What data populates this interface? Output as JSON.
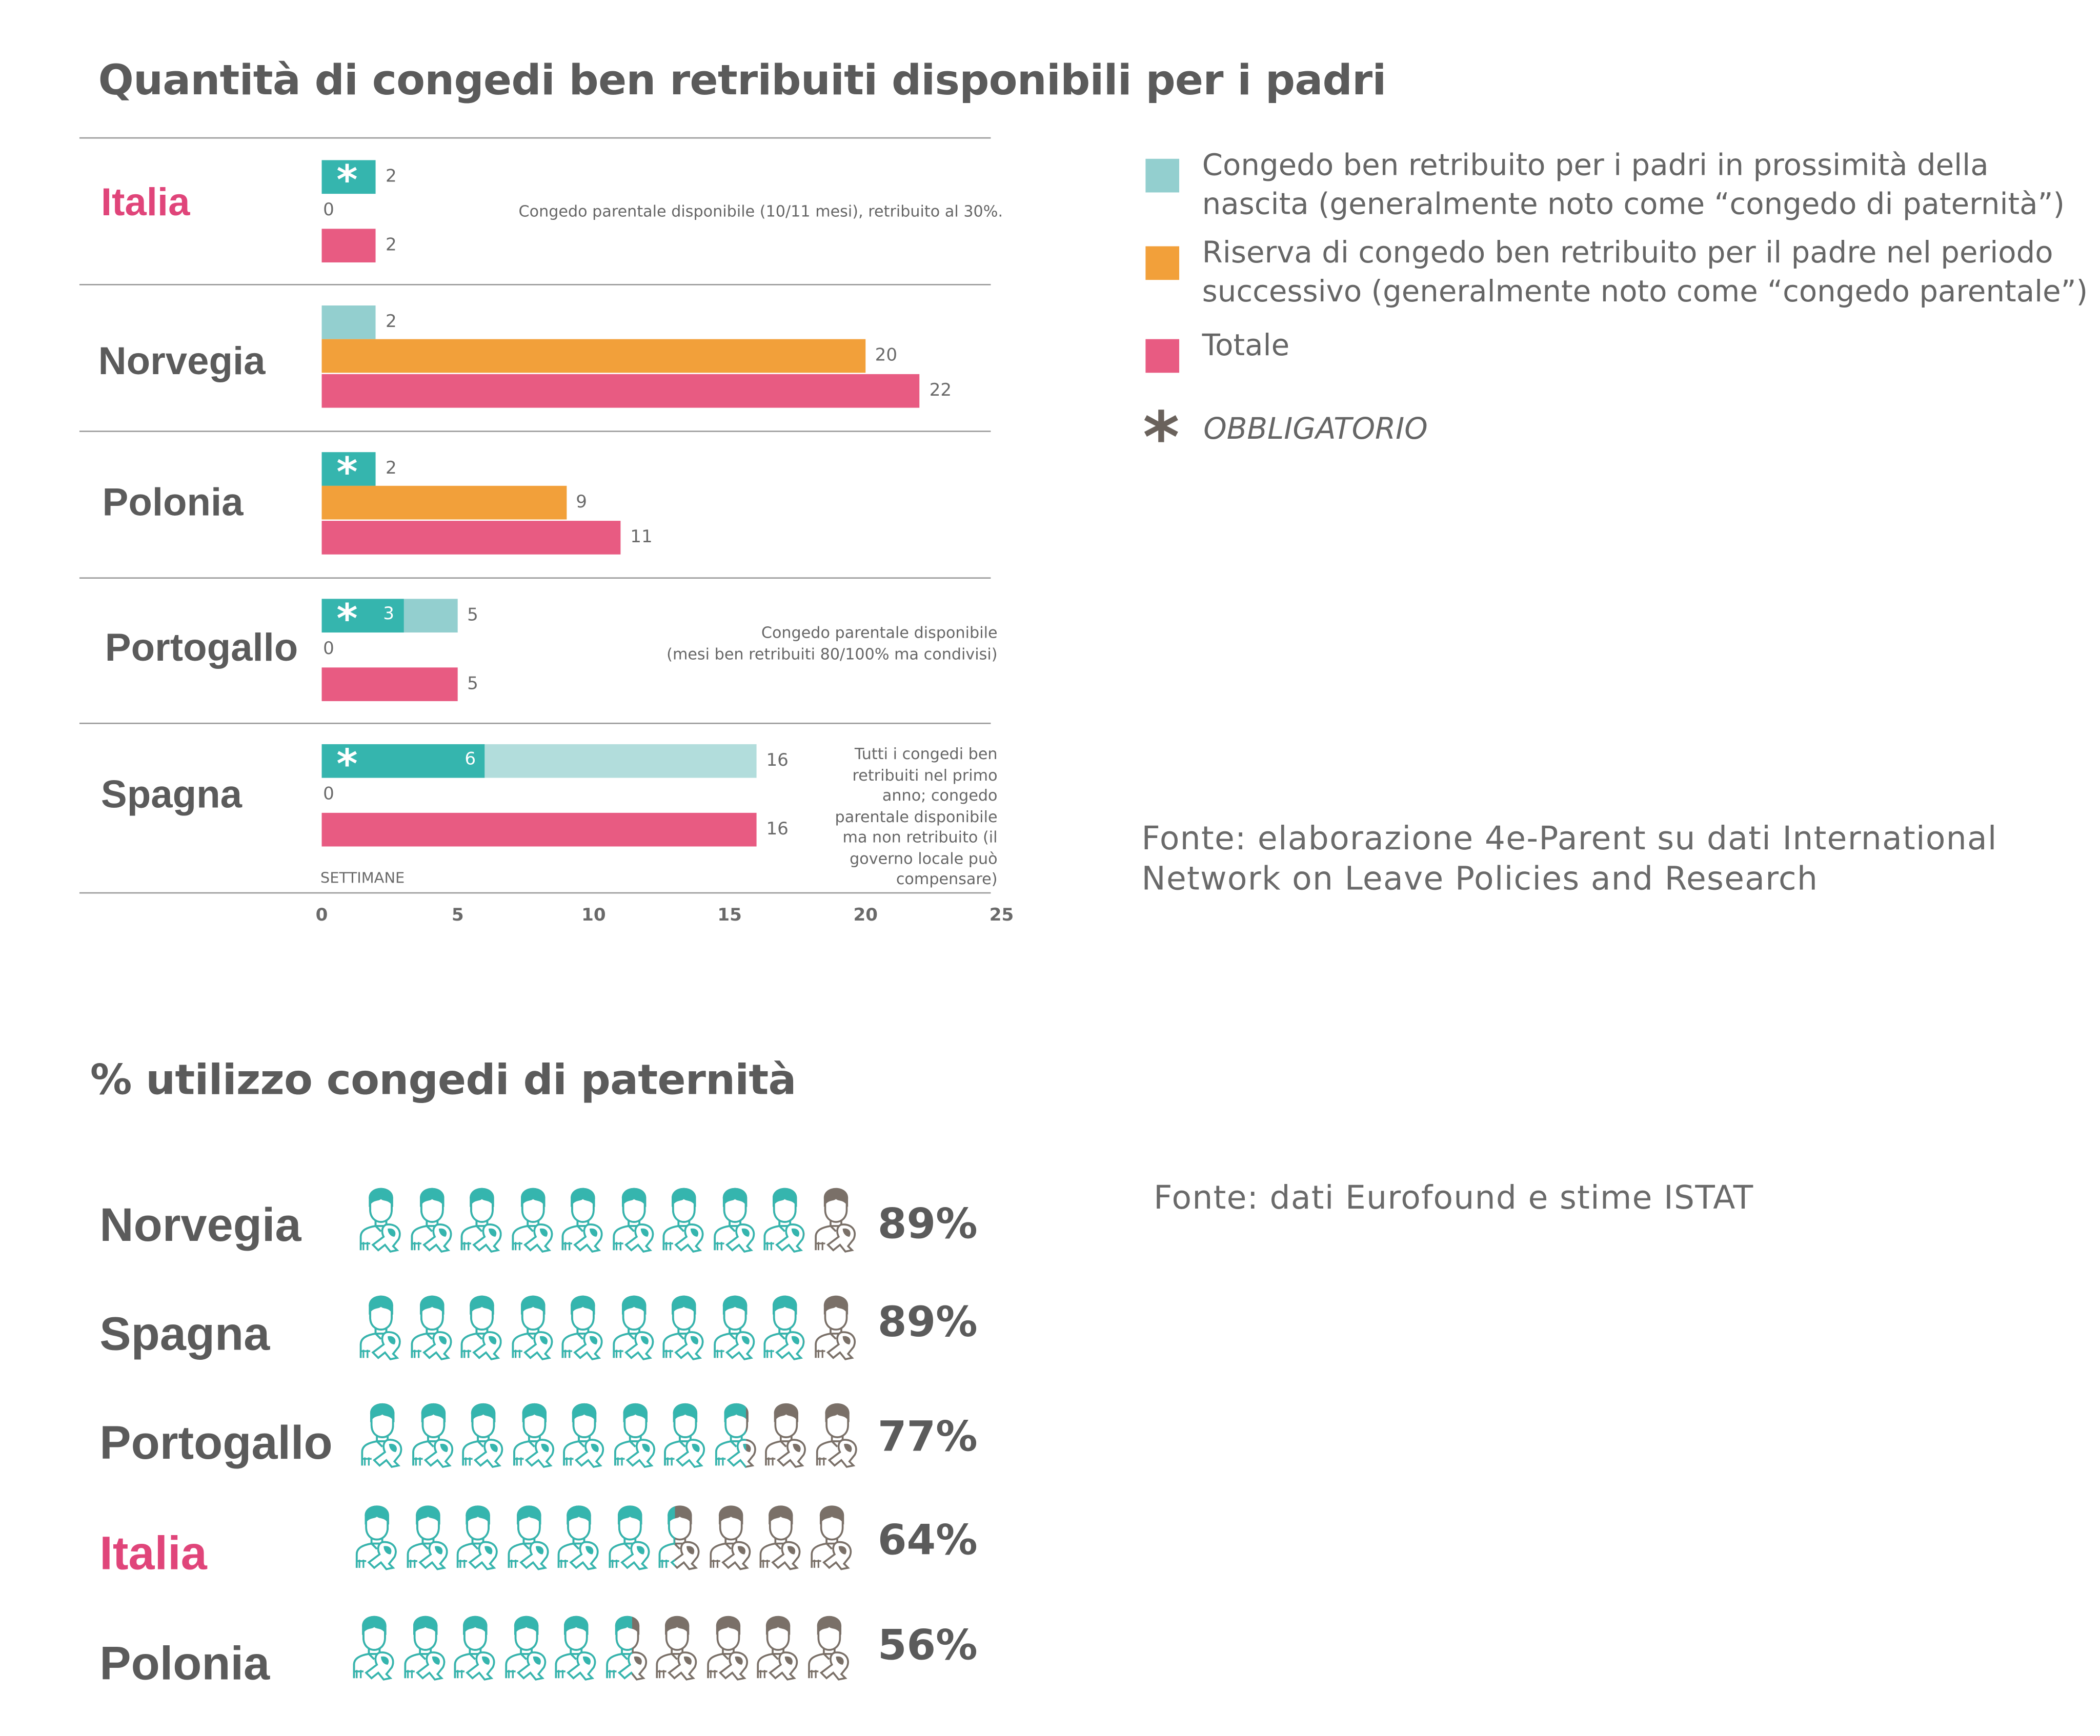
{
  "colors": {
    "mandatory": "#35b5ae",
    "paternity": "#93cfcf",
    "paternity_light": "#b2dddc",
    "parental": "#f2a03a",
    "total": "#e85b82",
    "highlight": "#e0457a",
    "icon_off": "#7a7068",
    "text": "#5b5b5b"
  },
  "chart_data": [
    {
      "type": "bar",
      "title": "Quantità di congedi ben retribuiti disponibili per i padri",
      "xlabel": "SETTIMANE",
      "xlim": [
        0,
        25
      ],
      "xticks": [
        "0",
        "5",
        "10",
        "15",
        "20",
        "25"
      ],
      "categories": [
        "Italia",
        "Norvegia",
        "Polonia",
        "Portogallo",
        "Spagna"
      ],
      "highlight_category": "Italia",
      "series": [
        {
          "name": "Congedo ben retribuito per i padri in prossimità della nascita (generalmente noto come “congedo di paternità”)",
          "values": [
            2,
            2,
            2,
            5,
            16
          ],
          "mandatory": [
            2,
            0,
            2,
            3,
            6
          ]
        },
        {
          "name": "Riserva di congedo ben retribuito per il padre nel periodo successivo (generalmente noto come “congedo parentale”)",
          "values": [
            0,
            20,
            9,
            0,
            0
          ]
        },
        {
          "name": "Totale",
          "values": [
            2,
            22,
            11,
            5,
            16
          ]
        }
      ],
      "annotations": [
        {
          "category": "Italia",
          "text": [
            "Congedo parentale disponibile (10/11 mesi), retribuito al 30%."
          ]
        },
        {
          "category": "Portogallo",
          "text": [
            "Congedo parentale disponibile",
            "(mesi ben retribuiti 80/100% ma condivisi)"
          ]
        },
        {
          "category": "Spagna",
          "text": [
            "Tutti i congedi ben",
            "retribuiti nel primo",
            "anno; congedo",
            "parentale disponibile",
            "ma non retribuito (il",
            "governo locale può",
            "compensare)"
          ]
        }
      ],
      "legend": {
        "placement": "right",
        "items": [
          "Congedo ben retribuito per i padri in prossimità della nascita (generalmente noto come “congedo di paternità”)",
          "Riserva di congedo ben retribuito per il padre nel periodo successivo (generalmente noto come “congedo parentale”)",
          "Totale"
        ],
        "mandatory_label": "OBBLIGATORIO"
      },
      "source": [
        "Fonte: elaborazione 4e-Parent su dati International",
        "Network on Leave Policies and Research"
      ]
    },
    {
      "type": "pictograph",
      "title": "% utilizzo congedi di paternità",
      "icon": "father-with-baby-icon",
      "icons_per_row": 10,
      "categories": [
        "Norvegia",
        "Spagna",
        "Portogallo",
        "Italia",
        "Polonia"
      ],
      "highlight_category": "Italia",
      "values": [
        89,
        89,
        77,
        64,
        56
      ],
      "labels": [
        "89%",
        "89%",
        "77%",
        "64%",
        "56%"
      ],
      "source": "Fonte: dati Eurofound e stime ISTAT"
    }
  ]
}
